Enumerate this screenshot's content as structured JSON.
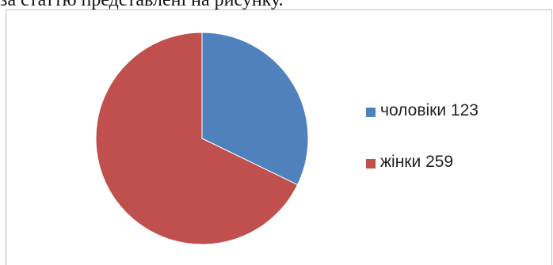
{
  "caption": "за статтю представлені на рисунку.",
  "chart_data": {
    "type": "pie",
    "legend_position": "right",
    "slices": [
      {
        "label": "чоловіки 123",
        "value": 123,
        "color": "#4f81bd"
      },
      {
        "label": "жінки 259",
        "value": 259,
        "color": "#c0504d"
      }
    ]
  }
}
